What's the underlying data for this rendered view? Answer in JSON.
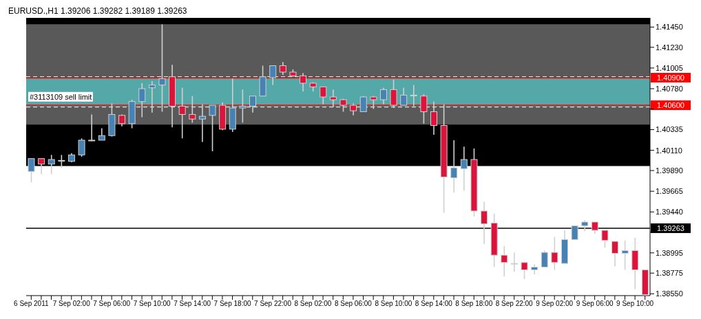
{
  "chart_data": {
    "type": "candlestick",
    "title": "EURUSD.,H1  1.39206 1.39282 1.39189 1.39263",
    "categories": [
      "6 Sep 2011",
      null,
      null,
      null,
      "7 Sep 02:00",
      null,
      null,
      null,
      "7 Sep 06:00",
      null,
      null,
      null,
      "7 Sep 10:00",
      null,
      null,
      null,
      "7 Sep 14:00",
      null,
      null,
      null,
      "7 Sep 18:00",
      null,
      null,
      null,
      "7 Sep 22:00",
      null,
      null,
      null,
      "8 Sep 02:00",
      null,
      null,
      null,
      "8 Sep 06:00",
      null,
      null,
      null,
      "8 Sep 10:00",
      null,
      null,
      null,
      "8 Sep 14:00",
      null,
      null,
      null,
      "8 Sep 18:00",
      null,
      null,
      null,
      "8 Sep 22:00",
      null,
      null,
      null,
      "9 Sep 02:00",
      null,
      null,
      null,
      "9 Sep 06:00",
      null,
      null,
      null,
      "9 Sep 10:00",
      null
    ],
    "ohlc": [
      [
        1.3988,
        1.4002,
        1.3976,
        1.4002
      ],
      [
        1.4002,
        1.4002,
        1.3985,
        1.3996
      ],
      [
        1.3996,
        1.4006,
        1.3985,
        1.4001
      ],
      [
        1.4,
        1.4006,
        1.3992,
        1.4
      ],
      [
        1.3999,
        1.4008,
        1.3998,
        1.4006
      ],
      [
        1.4006,
        1.4024,
        1.4004,
        1.4022
      ],
      [
        1.4022,
        1.405,
        1.4021,
        1.4022
      ],
      [
        1.4022,
        1.4035,
        1.4022,
        1.4027
      ],
      [
        1.4027,
        1.4062,
        1.4026,
        1.405
      ],
      [
        1.4049,
        1.405,
        1.4037,
        1.404
      ],
      [
        1.404,
        1.4066,
        1.4035,
        1.4064
      ],
      [
        1.4064,
        1.4084,
        1.4047,
        1.4078
      ],
      [
        1.4079,
        1.4086,
        1.4052,
        1.4082
      ],
      [
        1.4082,
        1.4148,
        1.4053,
        1.4089
      ],
      [
        1.4091,
        1.4104,
        1.4036,
        1.4059
      ],
      [
        1.4059,
        1.4079,
        1.4024,
        1.405
      ],
      [
        1.405,
        1.407,
        1.4041,
        1.4045
      ],
      [
        1.4045,
        1.4061,
        1.402,
        1.4048
      ],
      [
        1.4049,
        1.406,
        1.401,
        1.406
      ],
      [
        1.406,
        1.4063,
        1.4033,
        1.4034
      ],
      [
        1.4034,
        1.4089,
        1.4031,
        1.4057
      ],
      [
        1.4057,
        1.4077,
        1.4041,
        1.4059
      ],
      [
        1.4059,
        1.407,
        1.4052,
        1.407
      ],
      [
        1.407,
        1.4103,
        1.407,
        1.4091
      ],
      [
        1.409,
        1.4103,
        1.4082,
        1.4103
      ],
      [
        1.4103,
        1.4107,
        1.4093,
        1.4096
      ],
      [
        1.4096,
        1.4099,
        1.4091,
        1.4092
      ],
      [
        1.4092,
        1.4095,
        1.4075,
        1.4084
      ],
      [
        1.4084,
        1.4085,
        1.4075,
        1.408
      ],
      [
        1.408,
        1.408,
        1.4061,
        1.4069
      ],
      [
        1.4069,
        1.4077,
        1.4058,
        1.4066
      ],
      [
        1.4066,
        1.4067,
        1.4053,
        1.406
      ],
      [
        1.406,
        1.4062,
        1.4049,
        1.4054
      ],
      [
        1.4053,
        1.407,
        1.4053,
        1.4069
      ],
      [
        1.4069,
        1.407,
        1.4056,
        1.4066
      ],
      [
        1.4066,
        1.4079,
        1.4061,
        1.4077
      ],
      [
        1.4077,
        1.4088,
        1.4057,
        1.406
      ],
      [
        1.406,
        1.4079,
        1.406,
        1.4071
      ],
      [
        1.4071,
        1.4082,
        1.4059,
        1.4071
      ],
      [
        1.407,
        1.4072,
        1.404,
        1.4053
      ],
      [
        1.4053,
        1.4064,
        1.4028,
        1.4038
      ],
      [
        1.4038,
        1.4061,
        1.3943,
        1.3982
      ],
      [
        1.3981,
        1.4022,
        1.3965,
        1.3992
      ],
      [
        1.3991,
        1.4015,
        1.3967,
        1.4001
      ],
      [
        1.4001,
        1.4013,
        1.3939,
        1.3945
      ],
      [
        1.3945,
        1.3955,
        1.3909,
        1.3931
      ],
      [
        1.3932,
        1.3942,
        1.3884,
        1.3897
      ],
      [
        1.3897,
        1.3907,
        1.3874,
        1.3889
      ],
      [
        1.3888,
        1.39,
        1.3879,
        1.3888
      ],
      [
        1.3889,
        1.389,
        1.3871,
        1.3881
      ],
      [
        1.3881,
        1.3887,
        1.3876,
        1.3884
      ],
      [
        1.3884,
        1.3902,
        1.3884,
        1.39
      ],
      [
        1.39,
        1.3917,
        1.3881,
        1.3889
      ],
      [
        1.3888,
        1.3924,
        1.3888,
        1.3914
      ],
      [
        1.3914,
        1.3929,
        1.3914,
        1.3929
      ],
      [
        1.3929,
        1.3935,
        1.3923,
        1.3933
      ],
      [
        1.3933,
        1.3933,
        1.392,
        1.3924
      ],
      [
        1.3924,
        1.3924,
        1.3905,
        1.3913
      ],
      [
        1.3912,
        1.3912,
        1.3885,
        1.3899
      ],
      [
        1.3899,
        1.3913,
        1.3881,
        1.3902
      ],
      [
        1.3902,
        1.3916,
        1.386,
        1.3881
      ],
      [
        1.3881,
        1.3881,
        1.3853,
        1.3854
      ]
    ],
    "colors": [
      "#4682b4",
      "#dc143c",
      "#4682b4",
      "#c0c0c0",
      "#4682b4",
      "#4682b4",
      "#c0c0c0",
      "#4682b4",
      "#4682b4",
      "#dc143c",
      "#4682b4",
      "#4682b4",
      "#4682b4",
      "#4682b4",
      "#dc143c",
      "#dc143c",
      "#dc143c",
      "#4682b4",
      "#4682b4",
      "#dc143c",
      "#4682b4",
      "#4682b4",
      "#4682b4",
      "#4682b4",
      "#4682b4",
      "#dc143c",
      "#dc143c",
      "#dc143c",
      "#dc143c",
      "#dc143c",
      "#dc143c",
      "#dc143c",
      "#dc143c",
      "#4682b4",
      "#dc143c",
      "#4682b4",
      "#dc143c",
      "#4682b4",
      "#c0c0c0",
      "#dc143c",
      "#dc143c",
      "#dc143c",
      "#4682b4",
      "#4682b4",
      "#dc143c",
      "#dc143c",
      "#dc143c",
      "#dc143c",
      "#c0c0c0",
      "#dc143c",
      "#4682b4",
      "#4682b4",
      "#dc143c",
      "#4682b4",
      "#4682b4",
      "#4682b4",
      "#dc143c",
      "#dc143c",
      "#dc143c",
      "#4682b4",
      "#dc143c",
      "#dc143c"
    ],
    "ylim": [
      1.3853,
      1.4155
    ],
    "yticks": [
      {
        "value": 1.4145,
        "label": "1.41450"
      },
      {
        "value": 1.4123,
        "label": "1.41230"
      },
      {
        "value": 1.41005,
        "label": "1.41005"
      },
      {
        "value": 1.4078,
        "label": "1.40780"
      },
      {
        "value": 1.4056,
        "label": null
      },
      {
        "value": 1.40335,
        "label": "1.40335"
      },
      {
        "value": 1.4011,
        "label": "1.40110"
      },
      {
        "value": 1.3989,
        "label": "1.39890"
      },
      {
        "value": 1.39665,
        "label": "1.39665"
      },
      {
        "value": 1.3944,
        "label": "1.39440"
      },
      {
        "value": 1.3922,
        "label": null
      },
      {
        "value": 1.38995,
        "label": "1.38995"
      },
      {
        "value": 1.38775,
        "label": "1.38775"
      },
      {
        "value": 1.3855,
        "label": "1.38550"
      }
    ],
    "bands": [
      {
        "axis": "y",
        "from": 1.3994,
        "to": 1.4155,
        "color": "#000000"
      },
      {
        "axis": "y",
        "from": 1.4039,
        "to": 1.4148,
        "color": "#595959"
      },
      {
        "axis": "y",
        "from": 1.4059,
        "to": 1.4089,
        "color": "#55a8a8"
      }
    ],
    "ref_lines": [
      {
        "axis": "y",
        "value": 1.4091,
        "color": "#ffffff",
        "line_style": "dashed"
      },
      {
        "axis": "y",
        "value": 1.4058,
        "color": "#ffffff",
        "line_style": "dashed",
        "label": "#3113109 sell limit"
      },
      {
        "axis": "y",
        "value": 1.409,
        "color": "#ff0000",
        "line_style": "solid",
        "label": "1.40900"
      },
      {
        "axis": "y",
        "value": 1.406,
        "color": "#ff0000",
        "line_style": "solid",
        "label": "1.40600"
      },
      {
        "axis": "y",
        "value": 1.39263,
        "color": "#000000",
        "line_style": "solid",
        "label": "1.39263"
      }
    ]
  }
}
